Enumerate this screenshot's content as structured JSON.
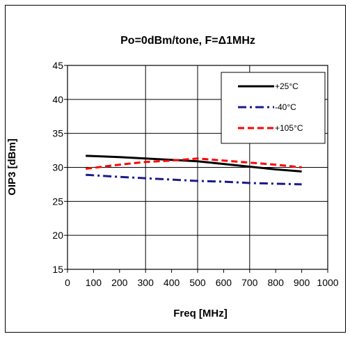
{
  "chart_data": {
    "type": "line",
    "title": "Po=0dBm/tone,  F=Δ1MHz",
    "xlabel": "Freq [MHz]",
    "ylabel": "OIP3 [dBm]",
    "xlim": [
      0,
      1000
    ],
    "ylim": [
      15,
      45
    ],
    "xticks": [
      0,
      100,
      200,
      300,
      400,
      500,
      600,
      700,
      800,
      900,
      1000
    ],
    "yticks": [
      15,
      20,
      25,
      30,
      35,
      40,
      45
    ],
    "grid": true,
    "legend_position": "top-right",
    "series": [
      {
        "name": "+25°C",
        "color": "#000000",
        "dash": "solid",
        "x": [
          70,
          200,
          300,
          400,
          500,
          600,
          700,
          800,
          900
        ],
        "y": [
          31.7,
          31.5,
          31.3,
          31.1,
          30.9,
          30.5,
          30.1,
          29.7,
          29.4
        ]
      },
      {
        "name": "-40°C",
        "color": "#1a1a8c",
        "dash": "dash-dot",
        "x": [
          70,
          200,
          300,
          400,
          500,
          600,
          700,
          800,
          900
        ],
        "y": [
          28.9,
          28.6,
          28.4,
          28.2,
          28.0,
          27.9,
          27.7,
          27.6,
          27.5
        ]
      },
      {
        "name": "+105°C",
        "color": "#ff0000",
        "dash": "dashed",
        "x": [
          70,
          200,
          300,
          400,
          500,
          600,
          700,
          800,
          900
        ],
        "y": [
          29.8,
          30.4,
          30.8,
          31.0,
          31.3,
          31.0,
          30.7,
          30.4,
          30.0
        ]
      }
    ]
  }
}
